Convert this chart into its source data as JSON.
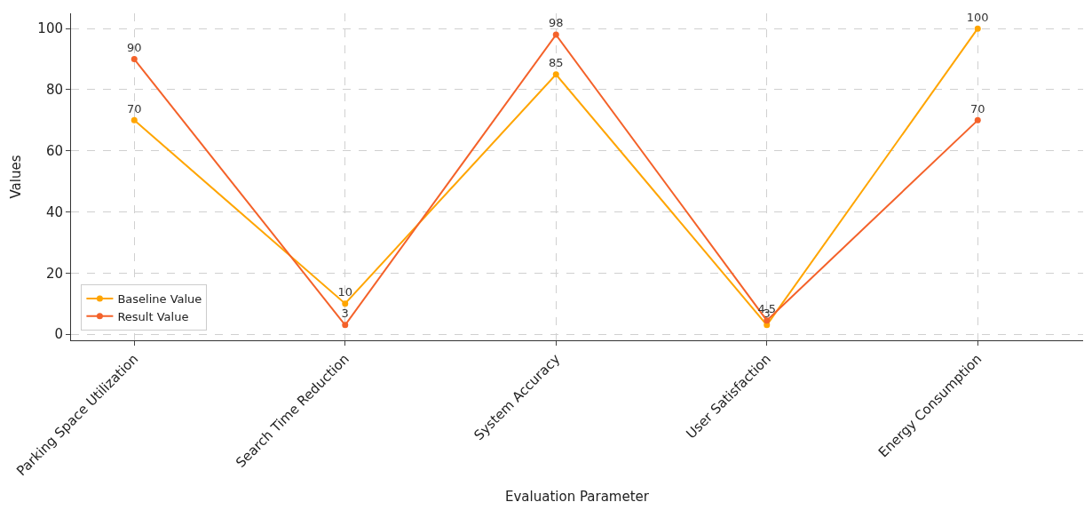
{
  "chart_data": {
    "type": "line",
    "xlabel": "Evaluation Parameter",
    "ylabel": "Values",
    "categories": [
      "Parking Space Utilization",
      "Search Time Reduction",
      "System Accuracy",
      "User Satisfaction",
      "Energy Consumption"
    ],
    "series": [
      {
        "name": "Baseline Value",
        "color": "#ffa500",
        "values": [
          70,
          10,
          85,
          3,
          100
        ]
      },
      {
        "name": "Result Value",
        "color": "#f4622a",
        "values": [
          90,
          3,
          98,
          4.5,
          70
        ]
      }
    ],
    "ylim": [
      -2,
      105
    ],
    "yticks": [
      0,
      20,
      40,
      60,
      80,
      100
    ],
    "grid": true,
    "legend": "bottom left",
    "marker": "circle",
    "line_style": "solid",
    "data_labels": true
  }
}
